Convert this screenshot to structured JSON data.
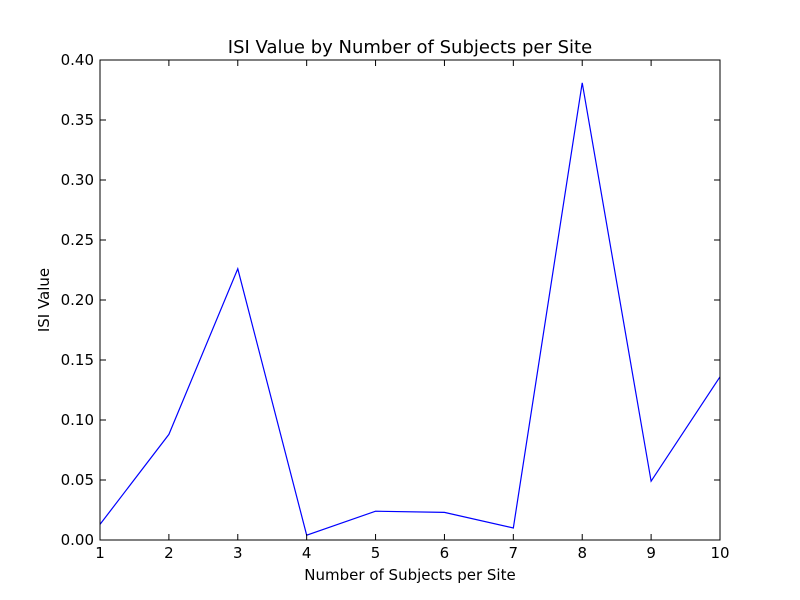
{
  "chart_data": {
    "type": "line",
    "title": "ISI Value by Number of Subjects per Site",
    "xlabel": "Number of Subjects per Site",
    "ylabel": "ISI Value",
    "xlim": [
      1,
      10
    ],
    "ylim": [
      0.0,
      0.4
    ],
    "x_ticks": [
      "1",
      "2",
      "3",
      "4",
      "5",
      "6",
      "7",
      "8",
      "9",
      "10"
    ],
    "y_ticks": [
      "0.00",
      "0.05",
      "0.10",
      "0.15",
      "0.20",
      "0.25",
      "0.30",
      "0.35",
      "0.40"
    ],
    "grid": false,
    "series": [
      {
        "color": "#0000ff",
        "x": [
          1,
          2,
          3,
          4,
          5,
          6,
          7,
          8,
          9,
          10
        ],
        "y": [
          0.013,
          0.088,
          0.226,
          0.004,
          0.024,
          0.023,
          0.01,
          0.381,
          0.049,
          0.136
        ]
      }
    ]
  }
}
